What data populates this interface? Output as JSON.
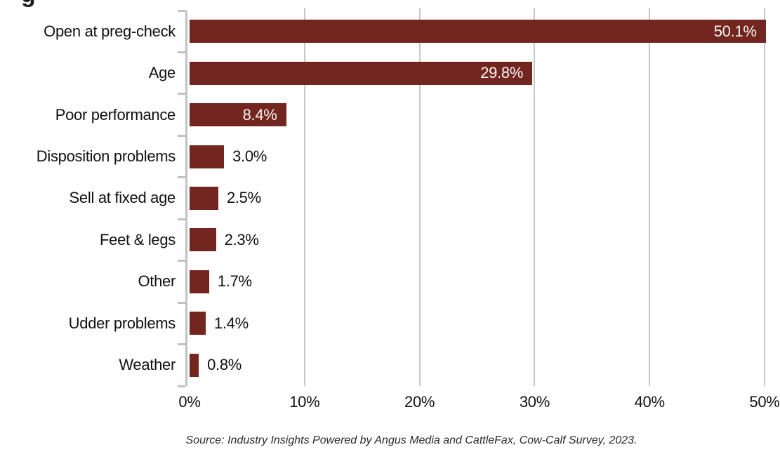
{
  "clipped_title_fragment": "g",
  "chart_data": {
    "type": "bar",
    "orientation": "horizontal",
    "title": "",
    "categories": [
      "Open at preg-check",
      "Age",
      "Poor performance",
      "Disposition problems",
      "Sell at fixed age",
      "Feet & legs",
      "Other",
      "Udder problems",
      "Weather"
    ],
    "values": [
      50.1,
      29.8,
      8.4,
      3.0,
      2.5,
      2.3,
      1.7,
      1.4,
      0.8
    ],
    "value_labels": [
      "50.1%",
      "29.8%",
      "8.4%",
      "3.0%",
      "2.5%",
      "2.3%",
      "1.7%",
      "1.4%",
      "0.8%"
    ],
    "x_tick_labels": [
      "0%",
      "10%",
      "20%",
      "30%",
      "40%",
      "50%"
    ],
    "x_tick_values": [
      0,
      10,
      20,
      30,
      40,
      50
    ],
    "xlim": [
      0,
      50
    ],
    "grid": "vertical",
    "legend": "none",
    "bar_color": "#732620",
    "gridline_color": "#c7c7c7",
    "axis_color": "#c2c2c4",
    "inside_label_color": "#f9f5f2",
    "outside_label_color": "#111111",
    "source": "Source: Industry Insights Powered by Angus Media and CattleFax, Cow-Calf Survey, 2023."
  }
}
